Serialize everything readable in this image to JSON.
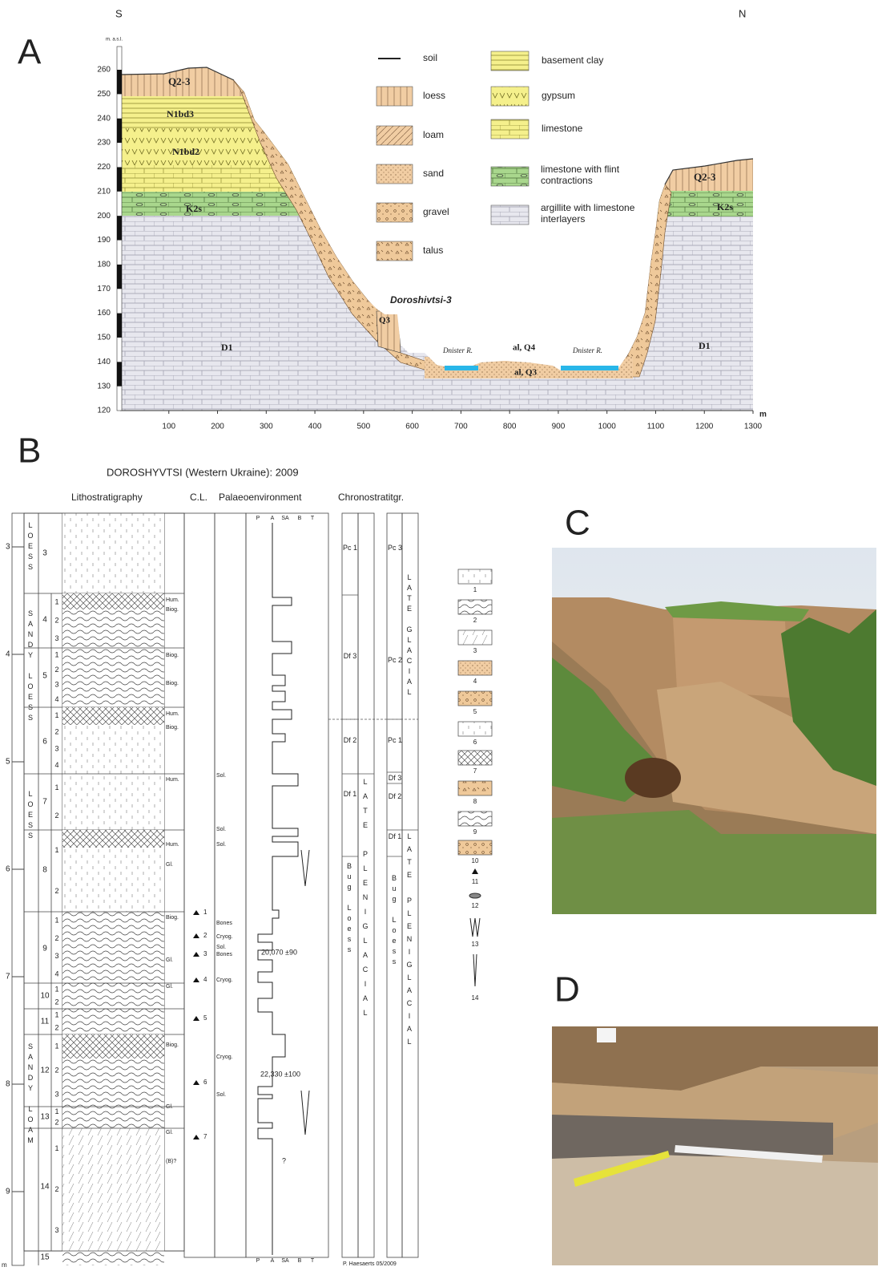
{
  "panel_a": {
    "label": "A",
    "south": "S",
    "north": "N",
    "y_unit": "m. a.s.l.",
    "x_unit": "m",
    "y_ticks": [
      260,
      250,
      240,
      230,
      220,
      210,
      200,
      190,
      180,
      170,
      160,
      150,
      140,
      130,
      120
    ],
    "x_ticks": [
      100,
      200,
      300,
      400,
      500,
      600,
      700,
      800,
      900,
      1000,
      1100,
      1200,
      1300
    ],
    "legend": [
      "soil",
      "loess",
      "loam",
      "sand",
      "gravel",
      "talus",
      "basement clay",
      "gypsum",
      "limestone",
      "limestone with flint contractions",
      "argillite with limestone interlayers"
    ],
    "labels": {
      "q23_left": "Q2-3",
      "n1bd3": "N1bd3",
      "n1bd2": "N1bd2",
      "k2s_left": "K2s",
      "d1_left": "D1",
      "site": "Doroshivtsi-3",
      "q3": "Q3",
      "river_left": "Dnister R.",
      "al_q4": "al, Q4",
      "river_right": "Dnister R.",
      "al_q3": "al, Q3",
      "d1_right": "D1",
      "q23_right": "Q2-3",
      "k2s_right": "K2s"
    }
  },
  "panel_b": {
    "label": "B",
    "title": "DOROSHYVTSI (Western Ukraine): 2009",
    "headers": {
      "lithostratigraphy": "Lithostratigraphy",
      "cl": "C.L.",
      "palaeoenvironment": "Palaeoenvironment",
      "chronostratigraphy": "Chronostratitgr."
    },
    "depths": [
      3,
      4,
      5,
      6,
      7,
      8,
      9
    ],
    "depth_unit": "m",
    "facies": [
      "LOESS",
      "SANDY LOESS",
      "LOESS",
      "SANDY LOAM"
    ],
    "units": [
      {
        "num": "3",
        "subs": []
      },
      {
        "num": "4",
        "subs": [
          "1",
          "2",
          "3"
        ]
      },
      {
        "num": "5",
        "subs": [
          "1",
          "2",
          "3",
          "4"
        ]
      },
      {
        "num": "6",
        "subs": [
          "1",
          "2",
          "3",
          "4"
        ]
      },
      {
        "num": "7",
        "subs": [
          "1",
          "2"
        ]
      },
      {
        "num": "8",
        "subs": [
          "1",
          "2"
        ]
      },
      {
        "num": "9",
        "subs": [
          "1",
          "2",
          "3",
          "4"
        ]
      },
      {
        "num": "10",
        "subs": [
          "1",
          "2"
        ]
      },
      {
        "num": "11",
        "subs": [
          "1",
          "2"
        ]
      },
      {
        "num": "12",
        "subs": [
          "1",
          "2",
          "3"
        ]
      },
      {
        "num": "13",
        "subs": [
          "1",
          "2"
        ]
      },
      {
        "num": "14",
        "subs": [
          "1",
          "2",
          "3"
        ]
      },
      {
        "num": "15",
        "subs": []
      }
    ],
    "horizons": [
      "Hum.",
      "Biog.",
      "Biog.",
      "Biog.",
      "Hum.",
      "Biog.",
      "Hum.",
      "Hum.",
      "Gl.",
      "Biog.",
      "Gl.",
      "Gl.",
      "Biog.",
      "Gl.",
      "Gl.",
      "(B)?"
    ],
    "cl_samples": [
      "1",
      "2",
      "3",
      "4",
      "5",
      "6",
      "7"
    ],
    "notes": [
      "Sol.",
      "Sol.",
      "Sol.",
      "Bones",
      "Cryog.",
      "Sol.",
      "Bones",
      "Cryog.",
      "Cryog.",
      "Sol."
    ],
    "env_axis": [
      "P",
      "A",
      "SA",
      "B",
      "T"
    ],
    "dates": [
      "20,070 ±90",
      "22,330 ±100"
    ],
    "uncertain": "?",
    "chrono_a": [
      "Pc 1",
      "Df 3",
      "Df 2",
      "Df 1",
      "Bug Loess"
    ],
    "chrono_a_period": "LATE PLENIGLACIAL",
    "chrono_b": [
      "Pc 3",
      "Pc 2",
      "Pc 1",
      "Df 3",
      "Df 2",
      "Df 1",
      "Bug Loess"
    ],
    "chrono_b_periods": [
      "LATE GLACIAL",
      "LATE PLENIGLACIAL"
    ],
    "credit": "P. Haesaerts 05/2009",
    "legend": [
      "1",
      "2",
      "3",
      "4",
      "5",
      "6",
      "7",
      "8",
      "9",
      "10",
      "11",
      "12",
      "13",
      "14"
    ]
  },
  "panel_c": {
    "label": "C"
  },
  "panel_d": {
    "label": "D"
  }
}
